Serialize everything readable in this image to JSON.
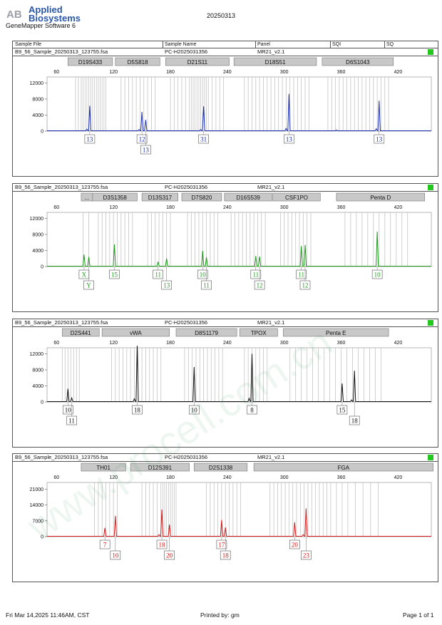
{
  "header": {
    "logo_text_line1": "Applied",
    "logo_text_line2": "Biosystems",
    "logo_mark": "AB",
    "software": "GeneMapper Software 6",
    "date": "20250313"
  },
  "columns": {
    "sample_file": "Sample File",
    "sample_name": "Sample Name",
    "panel": "Panel",
    "sqi": "SQI",
    "sq": "SQ"
  },
  "footer": {
    "timestamp": "Fri Mar 14,2025 11:46AM, CST",
    "printed_by": "Printed by: gm",
    "page": "Page 1 of 1"
  },
  "watermark_text": "www.procell.com.cn",
  "chart_data": [
    {
      "type": "line",
      "sample_file": "B9_56_Sample_20250313_123755.fsa",
      "sample_name": "PC-H2025031356",
      "panel": "MR21_v2.1",
      "color": "#1c2fb0",
      "quality_color": "#22c81e",
      "x_ticks": [
        60,
        120,
        180,
        240,
        300,
        360,
        420
      ],
      "xlim": [
        50,
        455
      ],
      "y_ticks": [
        0,
        4000,
        8000,
        12000
      ],
      "ylim": [
        0,
        13500
      ],
      "loci": [
        {
          "name": "D19S433",
          "start": 72,
          "end": 119
        },
        {
          "name": "D5S818",
          "start": 122,
          "end": 169
        },
        {
          "name": "D21S11",
          "start": 175,
          "end": 242
        },
        {
          "name": "D18S51",
          "start": 247,
          "end": 334
        },
        {
          "name": "D6S1043",
          "start": 340,
          "end": 415
        }
      ],
      "peaks": [
        {
          "x": 95,
          "y": 6300,
          "label": "13"
        },
        {
          "x": 150,
          "y": 4800,
          "label": "12"
        },
        {
          "x": 154,
          "y": 2800,
          "label": "13"
        },
        {
          "x": 215,
          "y": 6200,
          "label": "31"
        },
        {
          "x": 305,
          "y": 9300,
          "label": "13"
        },
        {
          "x": 400,
          "y": 7600,
          "label": "13"
        }
      ],
      "minor_peaks": [
        {
          "x": 92,
          "y": 500
        },
        {
          "x": 147,
          "y": 400
        },
        {
          "x": 212,
          "y": 400
        },
        {
          "x": 302,
          "y": 700
        },
        {
          "x": 397,
          "y": 600
        },
        {
          "x": 355,
          "y": 300
        }
      ],
      "bins": [
        80,
        83,
        86,
        88,
        90,
        92,
        94,
        96,
        98,
        100,
        102,
        104,
        106,
        108,
        110,
        112,
        128,
        132,
        136,
        140,
        144,
        148,
        152,
        156,
        160,
        164,
        180,
        184,
        188,
        192,
        196,
        200,
        202,
        204,
        206,
        208,
        210,
        212,
        214,
        216,
        218,
        220,
        224,
        228,
        232,
        236,
        258,
        262,
        266,
        270,
        274,
        278,
        282,
        286,
        290,
        294,
        298,
        302,
        306,
        310,
        314,
        318,
        322,
        326,
        346,
        350,
        354,
        358,
        362,
        366,
        370,
        374,
        378,
        382,
        386,
        390,
        394,
        398,
        402,
        406,
        410
      ]
    },
    {
      "type": "line",
      "sample_file": "B9_56_Sample_20250313_123755.fsa",
      "sample_name": "PC-H2025031356",
      "panel": "MR21_v2.1",
      "color": "#1f9a1b",
      "quality_color": "#22c81e",
      "x_ticks": [
        60,
        120,
        180,
        240,
        300,
        360,
        420
      ],
      "xlim": [
        50,
        455
      ],
      "y_ticks": [
        0,
        4000,
        8000,
        12000
      ],
      "ylim": [
        0,
        13500
      ],
      "loci": [
        {
          "name": "...",
          "start": 86,
          "end": 98
        },
        {
          "name": "D3S1358",
          "start": 98,
          "end": 145
        },
        {
          "name": "D13S317",
          "start": 150,
          "end": 188
        },
        {
          "name": "D7S820",
          "start": 192,
          "end": 234
        },
        {
          "name": "D16S539",
          "start": 237,
          "end": 287
        },
        {
          "name": "CSF1PO",
          "start": 288,
          "end": 338
        },
        {
          "name": "Penta D",
          "start": 355,
          "end": 448
        }
      ],
      "peaks": [
        {
          "x": 89,
          "y": 3000,
          "label": "X"
        },
        {
          "x": 94,
          "y": 2400,
          "label": "Y"
        },
        {
          "x": 121,
          "y": 5500,
          "label": "15"
        },
        {
          "x": 167,
          "y": 1200,
          "label": "11"
        },
        {
          "x": 176,
          "y": 2000,
          "label": "13"
        },
        {
          "x": 214,
          "y": 3900,
          "label": "10"
        },
        {
          "x": 218,
          "y": 2300,
          "label": "11"
        },
        {
          "x": 270,
          "y": 2600,
          "label": "11"
        },
        {
          "x": 274,
          "y": 2500,
          "label": "12"
        },
        {
          "x": 318,
          "y": 5100,
          "label": "11"
        },
        {
          "x": 322,
          "y": 5400,
          "label": "12"
        },
        {
          "x": 398,
          "y": 8700,
          "label": "10"
        }
      ],
      "minor_peaks": [],
      "bins": [
        88,
        94,
        104,
        108,
        112,
        116,
        120,
        124,
        128,
        132,
        136,
        140,
        156,
        160,
        164,
        168,
        172,
        176,
        180,
        198,
        202,
        206,
        210,
        214,
        218,
        222,
        226,
        230,
        244,
        248,
        252,
        256,
        260,
        264,
        268,
        272,
        276,
        280,
        296,
        300,
        304,
        308,
        312,
        316,
        320,
        324,
        328,
        364,
        370,
        376,
        382,
        388,
        394,
        400,
        406,
        412,
        418,
        424,
        430
      ]
    },
    {
      "type": "line",
      "sample_file": "B9_56_Sample_20250313_123755.fsa",
      "sample_name": "PC-H2025031356",
      "panel": "MR21_v2.1",
      "color": "#111111",
      "quality_color": "#22c81e",
      "x_ticks": [
        60,
        120,
        180,
        240,
        300,
        360,
        420
      ],
      "xlim": [
        50,
        455
      ],
      "y_ticks": [
        0,
        4000,
        8000,
        12000
      ],
      "ylim": [
        0,
        13500
      ],
      "loci": [
        {
          "name": "D2S441",
          "start": 66,
          "end": 105
        },
        {
          "name": "vWA",
          "start": 108,
          "end": 179
        },
        {
          "name": "D8S1179",
          "start": 186,
          "end": 250
        },
        {
          "name": "TPOX",
          "start": 253,
          "end": 293
        },
        {
          "name": "Penta E",
          "start": 299,
          "end": 410
        }
      ],
      "peaks": [
        {
          "x": 72,
          "y": 3300,
          "label": "10"
        },
        {
          "x": 76,
          "y": 1000,
          "label": "11"
        },
        {
          "x": 145,
          "y": 14000,
          "label": "18"
        },
        {
          "x": 205,
          "y": 8700,
          "label": "10"
        },
        {
          "x": 266,
          "y": 12000,
          "label": "8"
        },
        {
          "x": 361,
          "y": 4600,
          "label": "15"
        },
        {
          "x": 374,
          "y": 7800,
          "label": "18"
        }
      ],
      "minor_peaks": [
        {
          "x": 142,
          "y": 800
        },
        {
          "x": 263,
          "y": 900
        },
        {
          "x": 371,
          "y": 500
        }
      ],
      "bins": [
        66,
        69,
        72,
        75,
        78,
        81,
        84,
        118,
        122,
        126,
        130,
        134,
        138,
        142,
        146,
        150,
        154,
        158,
        162,
        166,
        170,
        195,
        199,
        203,
        207,
        211,
        215,
        219,
        223,
        227,
        231,
        235,
        258,
        262,
        266,
        270,
        274,
        278,
        282,
        306,
        312,
        318,
        324,
        330,
        336,
        342,
        348,
        354,
        360,
        366,
        372,
        378,
        384,
        390,
        396,
        402
      ]
    },
    {
      "type": "line",
      "sample_file": "B9_56_Sample_20250313_123755.fsa",
      "sample_name": "PC-H2025031356",
      "panel": "MR21_v2.1",
      "color": "#d11a1a",
      "quality_color": "#22c81e",
      "x_ticks": [
        60,
        120,
        180,
        240,
        300,
        360,
        420
      ],
      "xlim": [
        50,
        455
      ],
      "y_ticks": [
        0,
        7000,
        14000,
        21000
      ],
      "ylim": [
        0,
        24000
      ],
      "loci": [
        {
          "name": "TH01",
          "start": 86,
          "end": 133
        },
        {
          "name": "D12S391",
          "start": 138,
          "end": 200
        },
        {
          "name": "D2S1338",
          "start": 205,
          "end": 261
        },
        {
          "name": "FGA",
          "start": 268,
          "end": 457
        }
      ],
      "peaks": [
        {
          "x": 111,
          "y": 3900,
          "label": "7"
        },
        {
          "x": 122,
          "y": 9200,
          "label": "10"
        },
        {
          "x": 171,
          "y": 12000,
          "label": "18"
        },
        {
          "x": 179,
          "y": 5300,
          "label": "20"
        },
        {
          "x": 234,
          "y": 7400,
          "label": "17"
        },
        {
          "x": 238,
          "y": 4100,
          "label": "18"
        },
        {
          "x": 311,
          "y": 6400,
          "label": "20"
        },
        {
          "x": 323,
          "y": 12500,
          "label": "23"
        }
      ],
      "minor_peaks": [
        {
          "x": 168,
          "y": 900
        },
        {
          "x": 320,
          "y": 900
        }
      ],
      "bins": [
        100,
        104,
        108,
        112,
        116,
        120,
        124,
        150,
        154,
        158,
        162,
        166,
        170,
        172,
        174,
        176,
        178,
        180,
        182,
        184,
        186,
        218,
        222,
        226,
        230,
        234,
        238,
        242,
        246,
        250,
        254,
        285,
        289,
        293,
        297,
        301,
        305,
        309,
        313,
        317,
        321,
        325,
        329,
        333,
        337,
        341,
        345,
        349,
        355,
        361,
        367,
        375,
        383,
        391,
        399
      ]
    }
  ]
}
